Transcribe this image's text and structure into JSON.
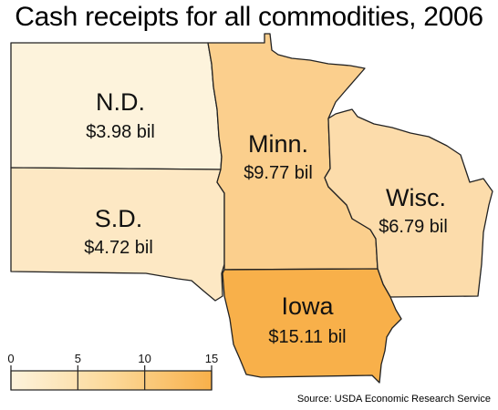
{
  "title": "Cash receipts for all commodities, 2006",
  "source": "Source: USDA Economic Research Service",
  "colors": {
    "outline": "#222222",
    "legend_ramp": [
      "#fdf3dc",
      "#fcd999",
      "#f8b04a"
    ]
  },
  "states": [
    {
      "id": "nd",
      "name": "N.D.",
      "value_label": "$3.98 bil",
      "value": 3.98,
      "fill": "#fdf3dc"
    },
    {
      "id": "sd",
      "name": "S.D.",
      "value_label": "$4.72 bil",
      "value": 4.72,
      "fill": "#fde8c4"
    },
    {
      "id": "mn",
      "name": "Minn.",
      "value_label": "$9.77 bil",
      "value": 9.77,
      "fill": "#fbcf8d"
    },
    {
      "id": "wi",
      "name": "Wisc.",
      "value_label": "$6.79 bil",
      "value": 6.79,
      "fill": "#fcdcab"
    },
    {
      "id": "ia",
      "name": "Iowa",
      "value_label": "$15.11 bil",
      "value": 15.11,
      "fill": "#f8b04a"
    }
  ],
  "legend": {
    "min": 0,
    "max": 15,
    "ticks": [
      "0",
      "5",
      "10",
      "15"
    ],
    "tick_values": [
      0,
      5,
      10,
      15
    ]
  }
}
